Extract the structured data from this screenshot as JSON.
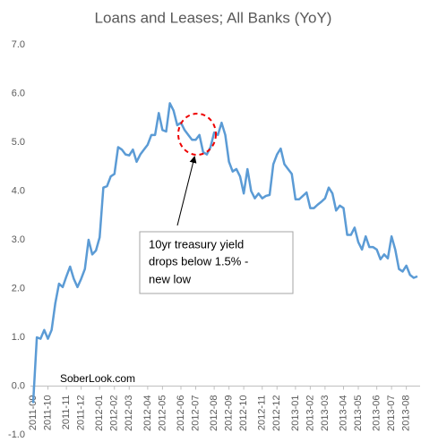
{
  "chart_data": {
    "type": "line",
    "title": "Loans and Leases; All Banks (YoY)",
    "categories": [
      "2011-09",
      null,
      null,
      null,
      "2011-10",
      null,
      null,
      null,
      null,
      "2011-11",
      null,
      null,
      null,
      "2011-12",
      null,
      null,
      null,
      null,
      "2012-01",
      null,
      null,
      null,
      "2012-02",
      null,
      null,
      null,
      "2012-03",
      null,
      null,
      null,
      null,
      "2012-04",
      null,
      null,
      null,
      "2012-05",
      null,
      null,
      null,
      null,
      "2012-06",
      null,
      null,
      null,
      "2012-07",
      null,
      null,
      null,
      null,
      "2012-08",
      null,
      null,
      null,
      "2012-09",
      null,
      null,
      null,
      "2012-10",
      null,
      null,
      null,
      null,
      "2012-11",
      null,
      null,
      null,
      "2012-12",
      null,
      null,
      null,
      null,
      "2013-01",
      null,
      null,
      null,
      "2013-02",
      null,
      null,
      null,
      "2013-03",
      null,
      null,
      null,
      null,
      "2013-04",
      null,
      null,
      null,
      "2013-05",
      null,
      null,
      null,
      null,
      "2013-06",
      null,
      null,
      null,
      "2013-07",
      null,
      null,
      null,
      "2013-08",
      null,
      null,
      null
    ],
    "series": [
      {
        "name": "Loans and Leases; All Banks (YoY)",
        "color": "#5b9bd5",
        "values": [
          -0.35,
          1.0,
          0.97,
          1.15,
          0.97,
          1.15,
          1.7,
          2.1,
          2.03,
          2.25,
          2.45,
          2.2,
          2.03,
          2.2,
          2.4,
          3.0,
          2.7,
          2.78,
          3.05,
          4.07,
          4.1,
          4.3,
          4.35,
          4.9,
          4.85,
          4.75,
          4.73,
          4.85,
          4.6,
          4.75,
          4.85,
          4.95,
          5.15,
          5.15,
          5.6,
          5.25,
          5.22,
          5.8,
          5.65,
          5.35,
          5.4,
          5.25,
          5.15,
          5.05,
          5.05,
          5.15,
          4.8,
          4.75,
          4.9,
          5.2,
          5.15,
          5.4,
          5.15,
          4.6,
          4.4,
          4.45,
          4.3,
          3.95,
          4.45,
          4.0,
          3.85,
          3.95,
          3.85,
          3.9,
          3.92,
          4.55,
          4.75,
          4.87,
          4.55,
          4.45,
          4.35,
          3.83,
          3.83,
          3.9,
          3.97,
          3.65,
          3.65,
          3.72,
          3.78,
          3.85,
          4.07,
          3.95,
          3.6,
          3.7,
          3.65,
          3.1,
          3.1,
          3.25,
          2.95,
          2.8,
          3.07,
          2.85,
          2.85,
          2.8,
          2.6,
          2.7,
          2.62,
          3.07,
          2.8,
          2.4,
          2.35,
          2.47,
          2.28,
          2.22,
          2.25
        ]
      }
    ],
    "ylim": [
      -1,
      7
    ],
    "yticks": [
      {
        "value": -1,
        "label": "-1.0"
      },
      {
        "value": 0,
        "label": "0.0"
      },
      {
        "value": 1,
        "label": "1.0"
      },
      {
        "value": 2,
        "label": "2.0"
      },
      {
        "value": 3,
        "label": "3.0"
      },
      {
        "value": 4,
        "label": "4.0"
      },
      {
        "value": 5,
        "label": "5.0"
      },
      {
        "value": 6,
        "label": "6.0"
      },
      {
        "value": 7,
        "label": "7.0"
      }
    ],
    "grid": false,
    "annotation_lines": [
      "10yr treasury yield",
      "drops below 1.5% -",
      "new low"
    ],
    "watermark": "SoberLook.com"
  }
}
